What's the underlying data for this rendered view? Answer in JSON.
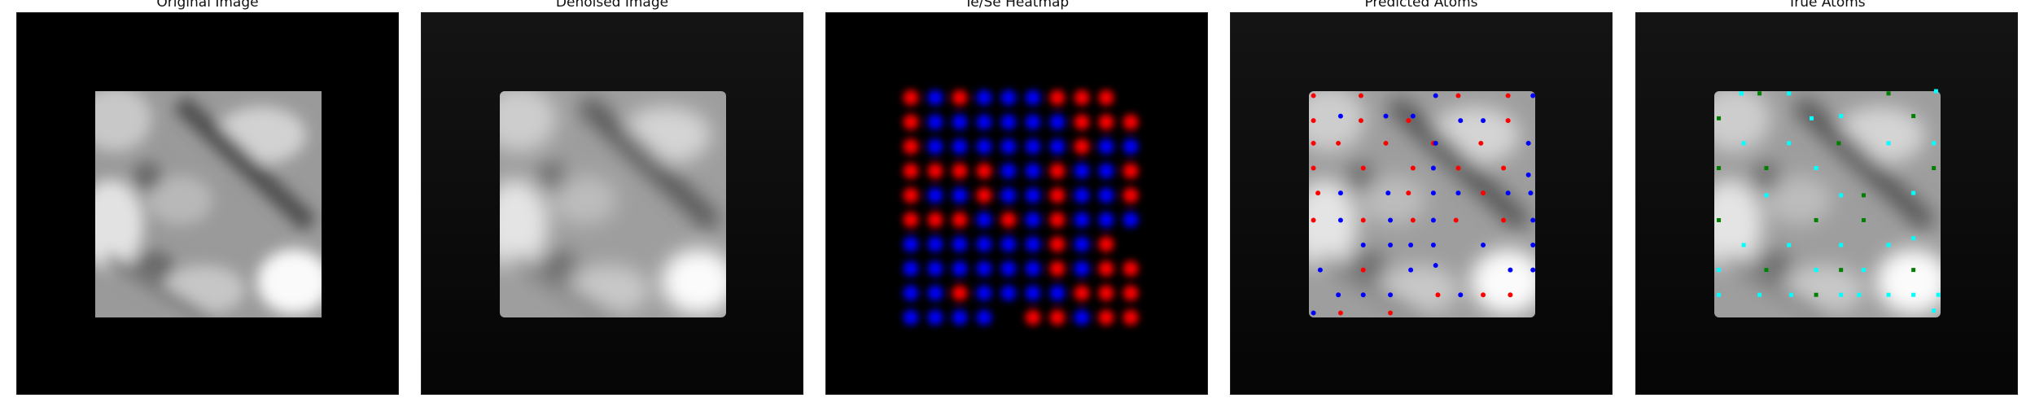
{
  "figure": {
    "panels": [
      {
        "id": "original",
        "title": "Original Image"
      },
      {
        "id": "denoised",
        "title": "Denoised Image"
      },
      {
        "id": "heatmap",
        "title": "Te/Se Heatmap"
      },
      {
        "id": "predicted",
        "title": "Predicted Atoms"
      },
      {
        "id": "true",
        "title": "True Atoms"
      }
    ]
  },
  "colors": {
    "background": "#000000",
    "te": "#ff0000",
    "se": "#0000ff",
    "true_a": "#00ffff",
    "true_b": "#008000"
  },
  "heatmap": {
    "note": "grid of blobs; color per cell (r=Te red, b=Se blue, .=empty)",
    "rows": [
      "rbrbbbrrr",
      "rbbbbbbrrr",
      "rbbbbbbrbb",
      "rrrrbbrbbr",
      "rbbrbbrbbr",
      "rrrbrbrbbb",
      "bbbbbbrbr",
      "bbbbbbrbrr",
      "bbrbbbbrrr",
      "bbbb.rrbrr"
    ]
  },
  "predicted_atoms": {
    "te": [
      [
        0.02,
        0.02
      ],
      [
        0.23,
        0.02
      ],
      [
        0.66,
        0.02
      ],
      [
        0.88,
        0.02
      ],
      [
        0.02,
        0.13
      ],
      [
        0.23,
        0.13
      ],
      [
        0.44,
        0.13
      ],
      [
        0.88,
        0.13
      ],
      [
        0.02,
        0.23
      ],
      [
        0.13,
        0.23
      ],
      [
        0.34,
        0.23
      ],
      [
        0.55,
        0.23
      ],
      [
        0.76,
        0.23
      ],
      [
        0.02,
        0.34
      ],
      [
        0.24,
        0.34
      ],
      [
        0.46,
        0.34
      ],
      [
        0.66,
        0.34
      ],
      [
        0.86,
        0.34
      ],
      [
        0.04,
        0.45
      ],
      [
        0.44,
        0.45
      ],
      [
        0.77,
        0.45
      ],
      [
        0.02,
        0.57
      ],
      [
        0.24,
        0.57
      ],
      [
        0.46,
        0.57
      ],
      [
        0.65,
        0.57
      ],
      [
        0.86,
        0.57
      ],
      [
        0.24,
        0.79
      ],
      [
        0.57,
        0.9
      ],
      [
        0.77,
        0.9
      ],
      [
        0.89,
        0.9
      ],
      [
        0.14,
        0.98
      ],
      [
        0.36,
        0.98
      ]
    ],
    "se": [
      [
        0.56,
        0.02
      ],
      [
        0.99,
        0.02
      ],
      [
        0.14,
        0.11
      ],
      [
        0.34,
        0.11
      ],
      [
        0.46,
        0.11
      ],
      [
        0.67,
        0.13
      ],
      [
        0.77,
        0.13
      ],
      [
        0.56,
        0.23
      ],
      [
        0.97,
        0.23
      ],
      [
        0.55,
        0.34
      ],
      [
        0.97,
        0.37
      ],
      [
        0.14,
        0.45
      ],
      [
        0.35,
        0.45
      ],
      [
        0.55,
        0.45
      ],
      [
        0.66,
        0.45
      ],
      [
        0.88,
        0.45
      ],
      [
        0.98,
        0.45
      ],
      [
        0.14,
        0.57
      ],
      [
        0.36,
        0.57
      ],
      [
        0.55,
        0.57
      ],
      [
        0.99,
        0.57
      ],
      [
        0.24,
        0.68
      ],
      [
        0.36,
        0.68
      ],
      [
        0.45,
        0.68
      ],
      [
        0.55,
        0.68
      ],
      [
        0.77,
        0.68
      ],
      [
        0.99,
        0.68
      ],
      [
        0.05,
        0.79
      ],
      [
        0.45,
        0.79
      ],
      [
        0.56,
        0.77
      ],
      [
        0.89,
        0.79
      ],
      [
        0.99,
        0.79
      ],
      [
        0.13,
        0.9
      ],
      [
        0.24,
        0.9
      ],
      [
        0.36,
        0.9
      ],
      [
        0.67,
        0.9
      ],
      [
        0.02,
        0.98
      ]
    ]
  },
  "true_atoms": {
    "cyan": [
      [
        0.12,
        0.01
      ],
      [
        0.33,
        0.01
      ],
      [
        0.98,
        0.0
      ],
      [
        0.56,
        0.11
      ],
      [
        0.13,
        0.23
      ],
      [
        0.33,
        0.23
      ],
      [
        0.77,
        0.23
      ],
      [
        0.97,
        0.23
      ],
      [
        0.45,
        0.34
      ],
      [
        0.23,
        0.46
      ],
      [
        0.56,
        0.46
      ],
      [
        0.88,
        0.45
      ],
      [
        0.33,
        0.68
      ],
      [
        0.77,
        0.68
      ],
      [
        0.56,
        0.68
      ],
      [
        0.13,
        0.68
      ],
      [
        0.02,
        0.79
      ],
      [
        0.23,
        0.79
      ],
      [
        0.45,
        0.79
      ],
      [
        0.66,
        0.79
      ],
      [
        0.88,
        0.65
      ],
      [
        0.02,
        0.9
      ],
      [
        0.34,
        0.9
      ],
      [
        0.56,
        0.9
      ],
      [
        0.77,
        0.9
      ],
      [
        0.99,
        0.9
      ],
      [
        0.43,
        0.12
      ],
      [
        0.97,
        0.97
      ],
      [
        0.2,
        0.9
      ],
      [
        0.64,
        0.9
      ],
      [
        0.88,
        0.9
      ],
      [
        0.12,
        0.01
      ]
    ],
    "green": [
      [
        0.2,
        0.01
      ],
      [
        0.77,
        0.01
      ],
      [
        0.02,
        0.12
      ],
      [
        0.88,
        0.11
      ],
      [
        0.55,
        0.23
      ],
      [
        0.02,
        0.34
      ],
      [
        0.23,
        0.34
      ],
      [
        0.97,
        0.34
      ],
      [
        0.66,
        0.46
      ],
      [
        0.45,
        0.57
      ],
      [
        0.02,
        0.57
      ],
      [
        0.66,
        0.57
      ],
      [
        0.23,
        0.79
      ],
      [
        0.88,
        0.79
      ],
      [
        0.56,
        0.79
      ],
      [
        0.45,
        0.9
      ]
    ]
  }
}
